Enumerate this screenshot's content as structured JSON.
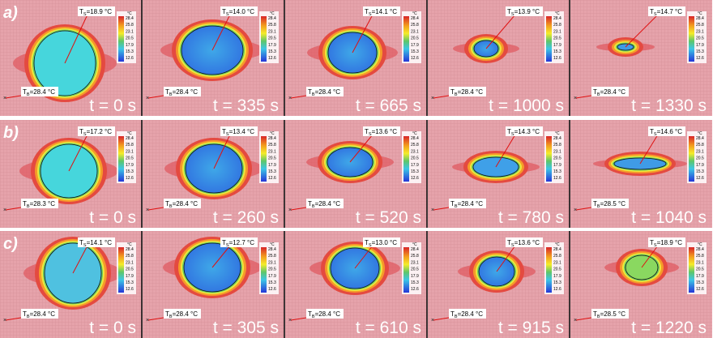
{
  "symbols": {
    "t": "T",
    "s": "S",
    "b": "B"
  },
  "colorbar": {
    "unit": "°C",
    "ticks": [
      "28.4",
      "25.8",
      "23.1",
      "20.5",
      "17.9",
      "15.3",
      "12.6"
    ]
  },
  "rows": [
    {
      "label": "a)",
      "panels": [
        {
          "ts": "=18.9 °C",
          "tb": "=28.4 °C",
          "time": "t = 0 s"
        },
        {
          "ts": "=14.0 °C",
          "tb": "=28.4 °C",
          "time": "t = 335 s"
        },
        {
          "ts": "=14.1 °C",
          "tb": "=28.4 °C",
          "time": "t = 665 s"
        },
        {
          "ts": "=13.9 °C",
          "tb": "=28.4 °C",
          "time": "t = 1000 s"
        },
        {
          "ts": "=14.7 °C",
          "tb": "=28.4 °C",
          "time": "t = 1330 s"
        }
      ]
    },
    {
      "label": "b)",
      "panels": [
        {
          "ts": "=17.2 °C",
          "tb": "=28.3 °C",
          "time": "t = 0 s"
        },
        {
          "ts": "=13.4 °C",
          "tb": "=28.4 °C",
          "time": "t = 260 s"
        },
        {
          "ts": "=13.6 °C",
          "tb": "=28.4 °C",
          "time": "t = 520 s"
        },
        {
          "ts": "=14.3 °C",
          "tb": "=28.4 °C",
          "time": "t = 780 s"
        },
        {
          "ts": "=14.6 °C",
          "tb": "=28.5 °C",
          "time": "t = 1040 s"
        }
      ]
    },
    {
      "label": "c)",
      "panels": [
        {
          "ts": "=14.1 °C",
          "tb": "=28.4 °C",
          "time": "t = 0 s"
        },
        {
          "ts": "=12.7 °C",
          "tb": "=28.4 °C",
          "time": "t = 305 s"
        },
        {
          "ts": "=13.0 °C",
          "tb": "=28.4 °C",
          "time": "t = 610 s"
        },
        {
          "ts": "=13.6 °C",
          "tb": "=28.4 °C",
          "time": "t = 915 s"
        },
        {
          "ts": "=18.9 °C",
          "tb": "=28.5 °C",
          "time": "t = 1220 s"
        }
      ]
    }
  ]
}
